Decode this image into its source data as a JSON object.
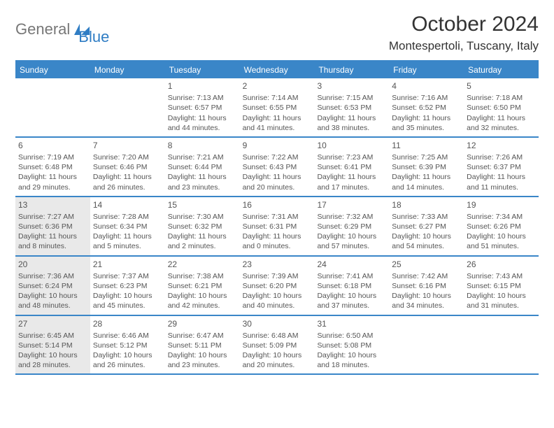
{
  "logo": {
    "text1": "General",
    "text2": "Blue"
  },
  "title": "October 2024",
  "location": "Montespertoli, Tuscany, Italy",
  "colors": {
    "header_bg": "#3a86c8",
    "highlight_bg": "#e9e9e9"
  },
  "dayNames": [
    "Sunday",
    "Monday",
    "Tuesday",
    "Wednesday",
    "Thursday",
    "Friday",
    "Saturday"
  ],
  "weeks": [
    [
      {
        "num": "",
        "sunrise": "",
        "sunset": "",
        "daylight": ""
      },
      {
        "num": "",
        "sunrise": "",
        "sunset": "",
        "daylight": ""
      },
      {
        "num": "1",
        "sunrise": "Sunrise: 7:13 AM",
        "sunset": "Sunset: 6:57 PM",
        "daylight": "Daylight: 11 hours and 44 minutes."
      },
      {
        "num": "2",
        "sunrise": "Sunrise: 7:14 AM",
        "sunset": "Sunset: 6:55 PM",
        "daylight": "Daylight: 11 hours and 41 minutes."
      },
      {
        "num": "3",
        "sunrise": "Sunrise: 7:15 AM",
        "sunset": "Sunset: 6:53 PM",
        "daylight": "Daylight: 11 hours and 38 minutes."
      },
      {
        "num": "4",
        "sunrise": "Sunrise: 7:16 AM",
        "sunset": "Sunset: 6:52 PM",
        "daylight": "Daylight: 11 hours and 35 minutes."
      },
      {
        "num": "5",
        "sunrise": "Sunrise: 7:18 AM",
        "sunset": "Sunset: 6:50 PM",
        "daylight": "Daylight: 11 hours and 32 minutes."
      }
    ],
    [
      {
        "num": "6",
        "sunrise": "Sunrise: 7:19 AM",
        "sunset": "Sunset: 6:48 PM",
        "daylight": "Daylight: 11 hours and 29 minutes."
      },
      {
        "num": "7",
        "sunrise": "Sunrise: 7:20 AM",
        "sunset": "Sunset: 6:46 PM",
        "daylight": "Daylight: 11 hours and 26 minutes."
      },
      {
        "num": "8",
        "sunrise": "Sunrise: 7:21 AM",
        "sunset": "Sunset: 6:44 PM",
        "daylight": "Daylight: 11 hours and 23 minutes."
      },
      {
        "num": "9",
        "sunrise": "Sunrise: 7:22 AM",
        "sunset": "Sunset: 6:43 PM",
        "daylight": "Daylight: 11 hours and 20 minutes."
      },
      {
        "num": "10",
        "sunrise": "Sunrise: 7:23 AM",
        "sunset": "Sunset: 6:41 PM",
        "daylight": "Daylight: 11 hours and 17 minutes."
      },
      {
        "num": "11",
        "sunrise": "Sunrise: 7:25 AM",
        "sunset": "Sunset: 6:39 PM",
        "daylight": "Daylight: 11 hours and 14 minutes."
      },
      {
        "num": "12",
        "sunrise": "Sunrise: 7:26 AM",
        "sunset": "Sunset: 6:37 PM",
        "daylight": "Daylight: 11 hours and 11 minutes."
      }
    ],
    [
      {
        "num": "13",
        "sunrise": "Sunrise: 7:27 AM",
        "sunset": "Sunset: 6:36 PM",
        "daylight": "Daylight: 11 hours and 8 minutes.",
        "hl": true
      },
      {
        "num": "14",
        "sunrise": "Sunrise: 7:28 AM",
        "sunset": "Sunset: 6:34 PM",
        "daylight": "Daylight: 11 hours and 5 minutes."
      },
      {
        "num": "15",
        "sunrise": "Sunrise: 7:30 AM",
        "sunset": "Sunset: 6:32 PM",
        "daylight": "Daylight: 11 hours and 2 minutes."
      },
      {
        "num": "16",
        "sunrise": "Sunrise: 7:31 AM",
        "sunset": "Sunset: 6:31 PM",
        "daylight": "Daylight: 11 hours and 0 minutes."
      },
      {
        "num": "17",
        "sunrise": "Sunrise: 7:32 AM",
        "sunset": "Sunset: 6:29 PM",
        "daylight": "Daylight: 10 hours and 57 minutes."
      },
      {
        "num": "18",
        "sunrise": "Sunrise: 7:33 AM",
        "sunset": "Sunset: 6:27 PM",
        "daylight": "Daylight: 10 hours and 54 minutes."
      },
      {
        "num": "19",
        "sunrise": "Sunrise: 7:34 AM",
        "sunset": "Sunset: 6:26 PM",
        "daylight": "Daylight: 10 hours and 51 minutes."
      }
    ],
    [
      {
        "num": "20",
        "sunrise": "Sunrise: 7:36 AM",
        "sunset": "Sunset: 6:24 PM",
        "daylight": "Daylight: 10 hours and 48 minutes.",
        "hl": true
      },
      {
        "num": "21",
        "sunrise": "Sunrise: 7:37 AM",
        "sunset": "Sunset: 6:23 PM",
        "daylight": "Daylight: 10 hours and 45 minutes."
      },
      {
        "num": "22",
        "sunrise": "Sunrise: 7:38 AM",
        "sunset": "Sunset: 6:21 PM",
        "daylight": "Daylight: 10 hours and 42 minutes."
      },
      {
        "num": "23",
        "sunrise": "Sunrise: 7:39 AM",
        "sunset": "Sunset: 6:20 PM",
        "daylight": "Daylight: 10 hours and 40 minutes."
      },
      {
        "num": "24",
        "sunrise": "Sunrise: 7:41 AM",
        "sunset": "Sunset: 6:18 PM",
        "daylight": "Daylight: 10 hours and 37 minutes."
      },
      {
        "num": "25",
        "sunrise": "Sunrise: 7:42 AM",
        "sunset": "Sunset: 6:16 PM",
        "daylight": "Daylight: 10 hours and 34 minutes."
      },
      {
        "num": "26",
        "sunrise": "Sunrise: 7:43 AM",
        "sunset": "Sunset: 6:15 PM",
        "daylight": "Daylight: 10 hours and 31 minutes."
      }
    ],
    [
      {
        "num": "27",
        "sunrise": "Sunrise: 6:45 AM",
        "sunset": "Sunset: 5:14 PM",
        "daylight": "Daylight: 10 hours and 28 minutes.",
        "hl": true
      },
      {
        "num": "28",
        "sunrise": "Sunrise: 6:46 AM",
        "sunset": "Sunset: 5:12 PM",
        "daylight": "Daylight: 10 hours and 26 minutes."
      },
      {
        "num": "29",
        "sunrise": "Sunrise: 6:47 AM",
        "sunset": "Sunset: 5:11 PM",
        "daylight": "Daylight: 10 hours and 23 minutes."
      },
      {
        "num": "30",
        "sunrise": "Sunrise: 6:48 AM",
        "sunset": "Sunset: 5:09 PM",
        "daylight": "Daylight: 10 hours and 20 minutes."
      },
      {
        "num": "31",
        "sunrise": "Sunrise: 6:50 AM",
        "sunset": "Sunset: 5:08 PM",
        "daylight": "Daylight: 10 hours and 18 minutes."
      },
      {
        "num": "",
        "sunrise": "",
        "sunset": "",
        "daylight": ""
      },
      {
        "num": "",
        "sunrise": "",
        "sunset": "",
        "daylight": ""
      }
    ]
  ]
}
